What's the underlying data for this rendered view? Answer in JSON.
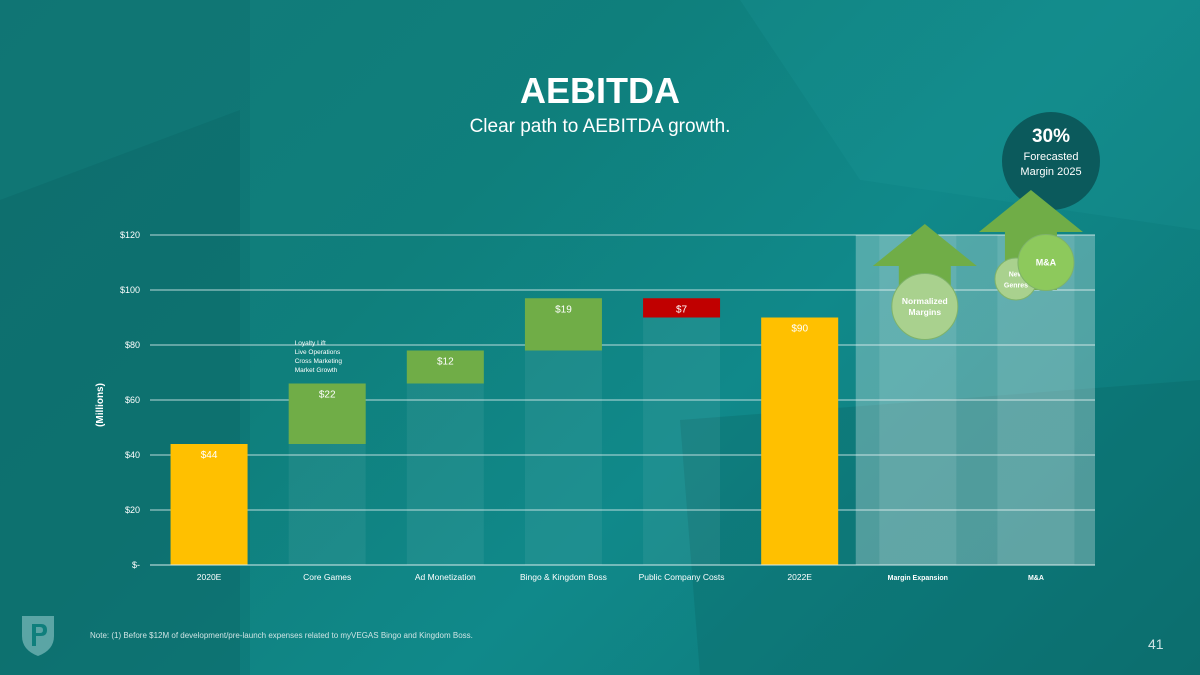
{
  "slide": {
    "title": "AEBITDA",
    "subtitle": "Clear path to AEBITDA growth.",
    "badge": {
      "value": "30%",
      "label": "Forecasted Margin 2025"
    },
    "note": "Note: (1) Before $12M of development/pre-launch expenses related to myVEGAS Bingo and Kingdom Boss.",
    "page_number": "41"
  },
  "colors": {
    "total": "#ffc000",
    "increase": "#70ad47",
    "decrease": "#c00000",
    "arrow": "#70ad47"
  },
  "chart_data": {
    "type": "bar",
    "subtype": "waterfall",
    "title": "",
    "ylabel": "(Millions)",
    "ylim": [
      0,
      120
    ],
    "yticks": [
      0,
      20,
      40,
      60,
      80,
      100,
      120
    ],
    "ytick_labels": [
      "$-",
      "$20",
      "$40",
      "$60",
      "$80",
      "$100",
      "$120"
    ],
    "grid": true,
    "categories": [
      "2020E",
      "Core Games",
      "Ad Monetization",
      "Bingo & Kingdom Boss",
      "Public Company Costs",
      "2022E",
      "Margin Expansion",
      "M&A"
    ],
    "bars": [
      {
        "category": "2020E",
        "kind": "total",
        "start": 0,
        "end": 44,
        "label": "$44"
      },
      {
        "category": "Core Games",
        "kind": "increase",
        "start": 44,
        "end": 66,
        "label": "$22"
      },
      {
        "category": "Ad Monetization",
        "kind": "increase",
        "start": 66,
        "end": 78,
        "label": "$12"
      },
      {
        "category": "Bingo & Kingdom Boss",
        "kind": "increase",
        "start": 78,
        "end": 97,
        "label": "$19"
      },
      {
        "category": "Public Company Costs",
        "kind": "decrease",
        "start": 97,
        "end": 90,
        "label": "$7"
      },
      {
        "category": "2022E",
        "kind": "total",
        "start": 0,
        "end": 90,
        "label": "$90"
      }
    ],
    "annotation": {
      "category": "Core Games",
      "lines": [
        "Loyalty Lift",
        "Live Operations",
        "Cross Marketing",
        "Market Growth"
      ]
    },
    "bubbles": [
      {
        "category": "Margin Expansion",
        "label": [
          "Normalized",
          "Margins"
        ],
        "value": 94
      },
      {
        "category": "M&A",
        "label": [
          "New",
          "Genres"
        ],
        "value": 104
      },
      {
        "category": "M&A",
        "label": [
          "M&A"
        ],
        "value": 110
      }
    ]
  }
}
